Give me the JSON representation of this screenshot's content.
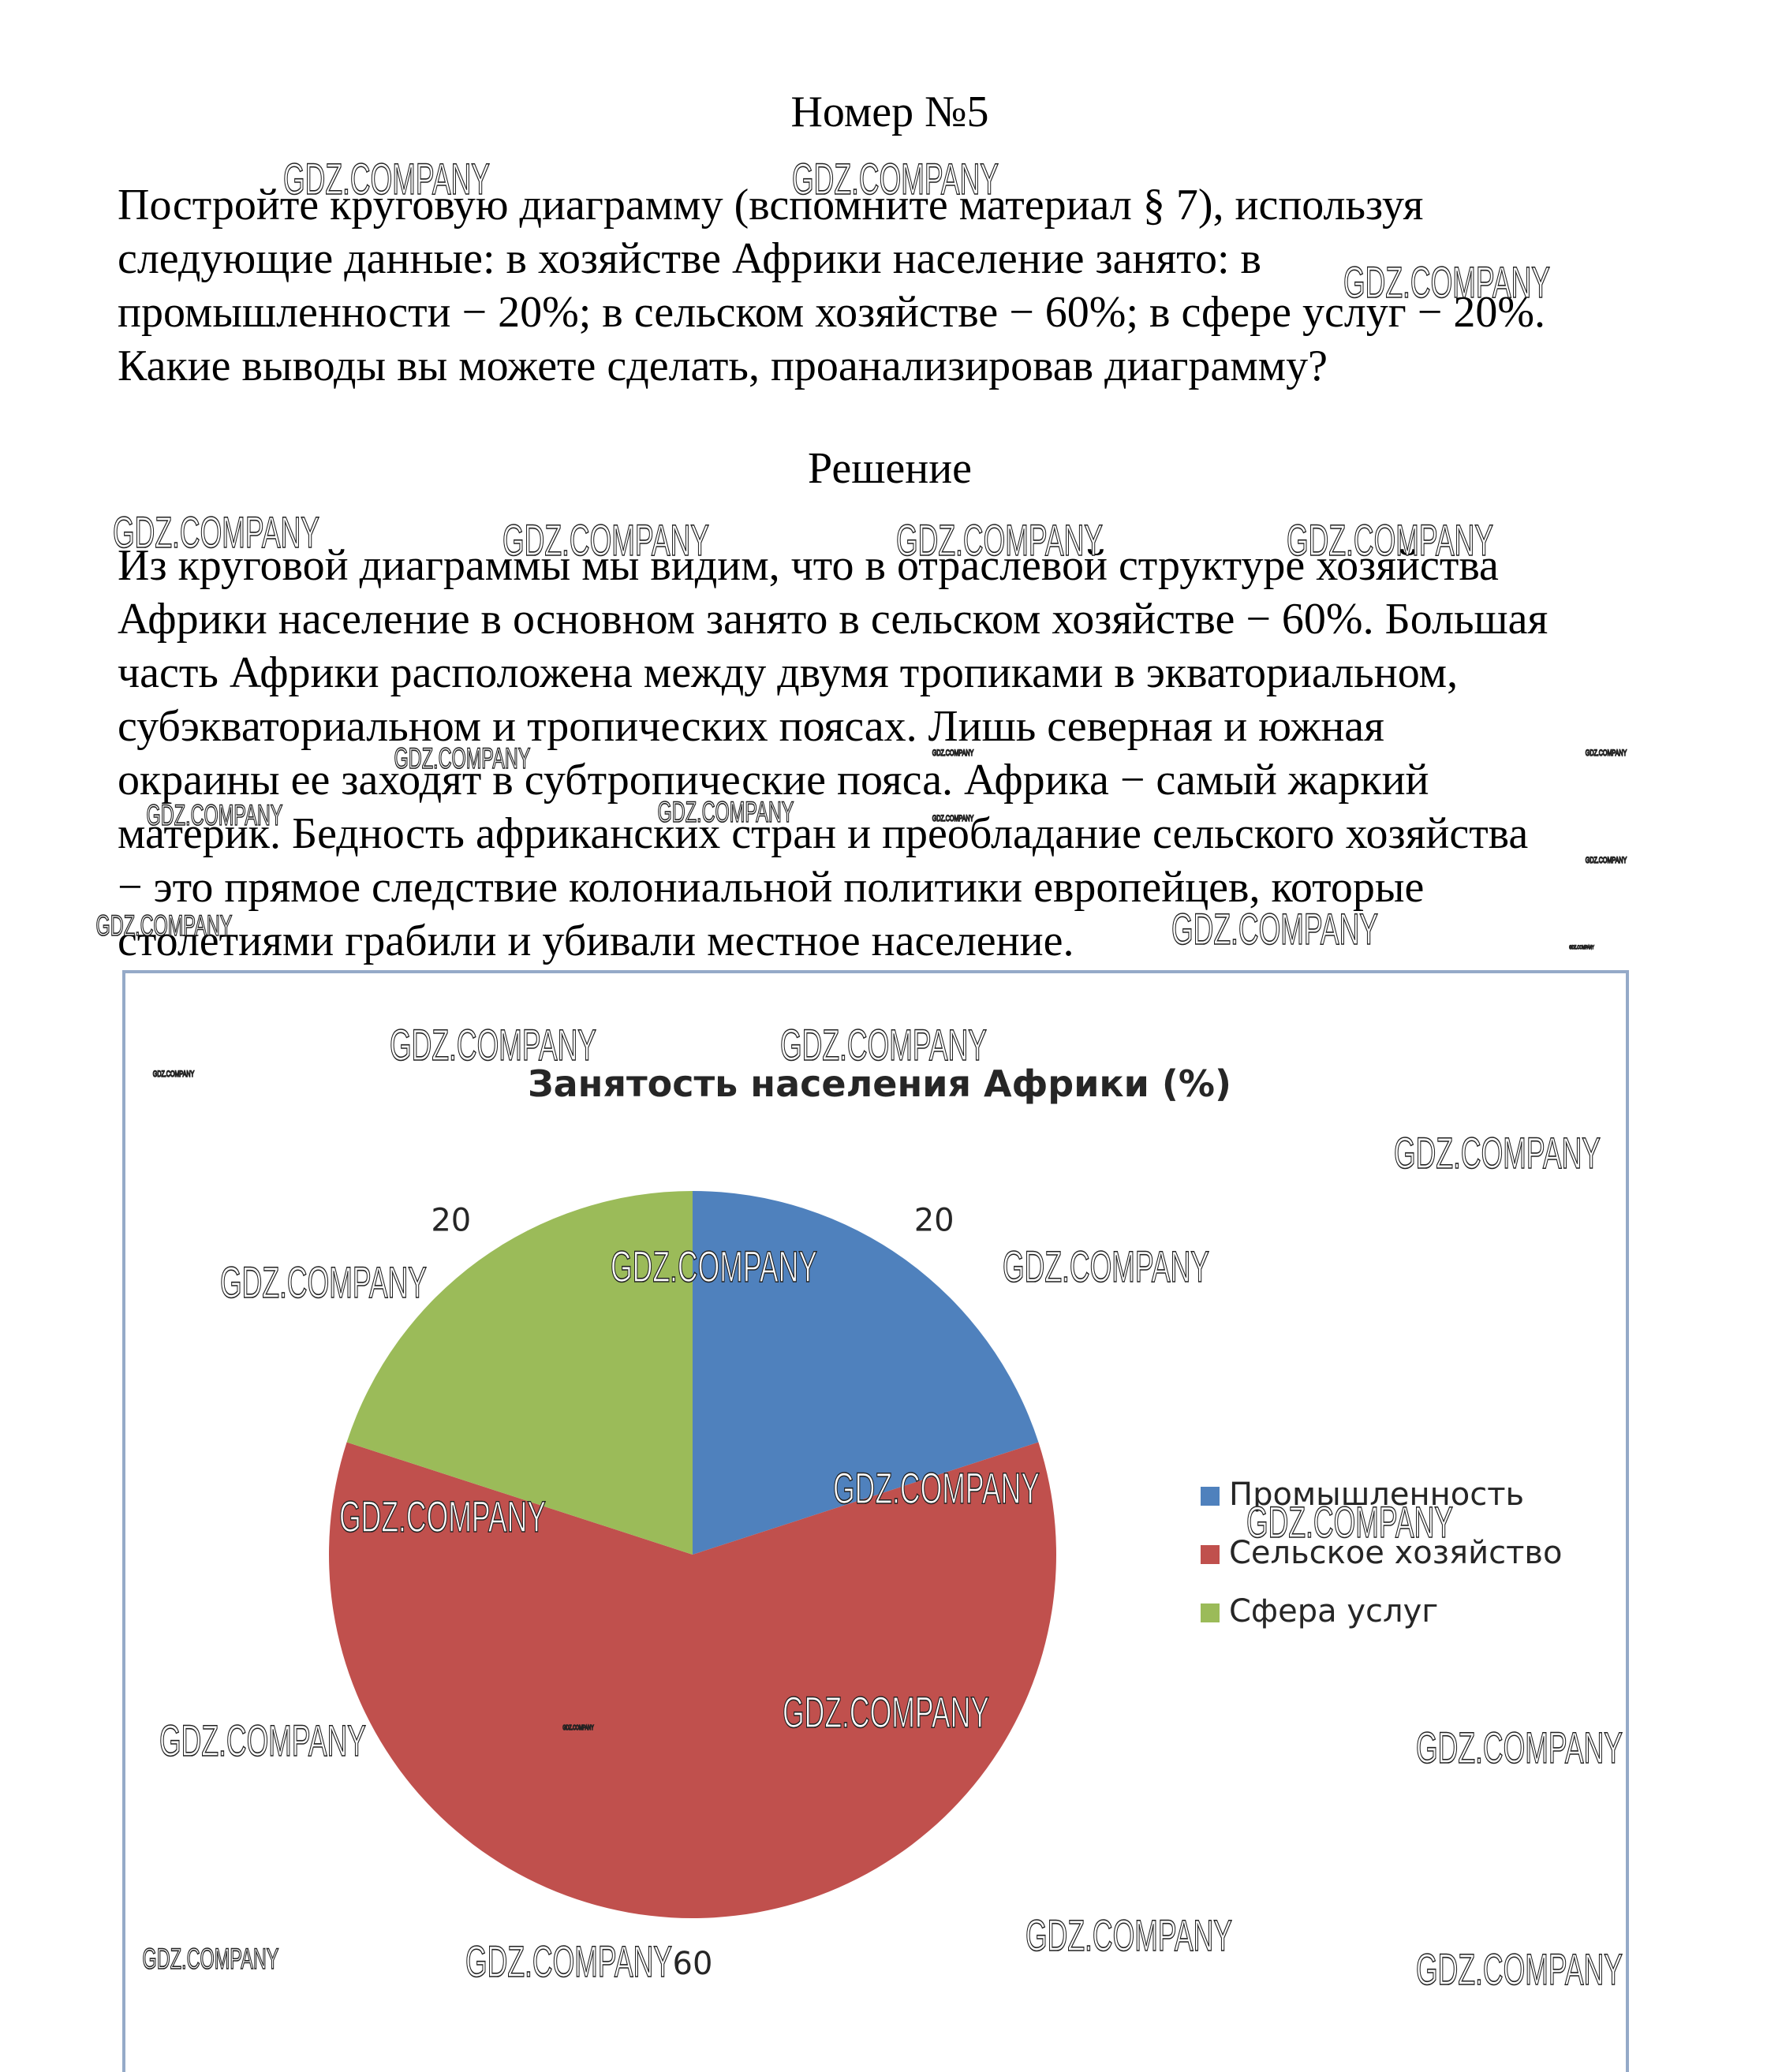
{
  "header": {
    "title": "Номер №5"
  },
  "problem": {
    "lines": [
      "Постройте круговую диаграмму (вспомните материал § 7), используя",
      "следующие данные: в хозяйстве Африки население занято: в",
      "промышленности − 20%; в сельском хозяйстве − 60%; в сфере услуг − 20%.",
      "Какие выводы вы можете сделать, проанализировав диаграмму?"
    ]
  },
  "solution": {
    "title": "Решение",
    "lines": [
      "Из круговой диаграммы мы видим, что в отраслевой структуре хозяйства",
      "Африки население в основном занято в сельском хозяйстве − 60%. Большая",
      "часть Африки расположена между двумя тропиками в экваториальном,",
      "субэкваториальном и тропических поясах. Лишь северная и южная",
      "окраины ее заходят в субтропические пояса. Африка − самый жаркий",
      "материк. Бедность африканских стран и преобладание сельского хозяйства",
      "− это прямое следствие колониальной политики европейцев, которые",
      "столетиями грабили и убивали местное население."
    ]
  },
  "watermark": "GDZ.COMPANY",
  "chart_data": {
    "type": "pie",
    "title": "Занятость населения Африки (%)",
    "categories": [
      "Промышленность",
      "Сельское хозяйство",
      "Сфера услуг"
    ],
    "values": [
      20,
      60,
      20
    ],
    "colors": [
      "#4f81bd",
      "#c0504d",
      "#9bbb59"
    ],
    "legend": "right"
  }
}
